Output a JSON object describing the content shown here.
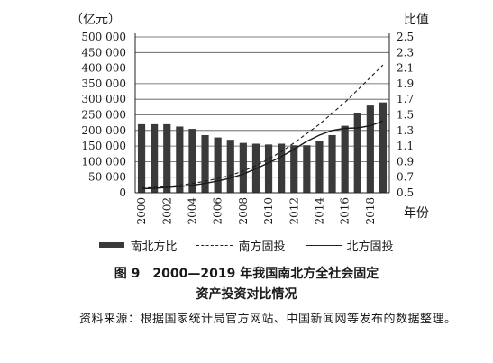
{
  "chart_data": {
    "type": "bar",
    "x": [
      "2000",
      "2001",
      "2002",
      "2003",
      "2004",
      "2005",
      "2006",
      "2007",
      "2008",
      "2009",
      "2010",
      "2011",
      "2012",
      "2013",
      "2014",
      "2015",
      "2016",
      "2017",
      "2018",
      "2019"
    ],
    "x_tick_labels": [
      "2000",
      "2002",
      "2004",
      "2006",
      "2008",
      "2010",
      "2012",
      "2014",
      "2016",
      "2018"
    ],
    "xlabel": "年份",
    "ylabel_left": "（亿元）",
    "ylabel_right": "比值",
    "yticks_left": [
      "0",
      "50 000",
      "100 000",
      "150 000",
      "200 000",
      "250 000",
      "300 000",
      "350 000",
      "400 000",
      "450 000",
      "500 000"
    ],
    "yticks_right": [
      "0.5",
      "0.7",
      "0.9",
      "1.1",
      "1.3",
      "1.5",
      "1.7",
      "1.9",
      "2.1",
      "2.3",
      "2.5"
    ],
    "ylim_left": [
      0,
      500000
    ],
    "ylim_right": [
      0.5,
      2.5
    ],
    "grid": true,
    "legend_position": "bottom",
    "series": [
      {
        "name": "南北方比",
        "type": "bar",
        "axis": "right",
        "values": [
          1.38,
          1.38,
          1.38,
          1.35,
          1.32,
          1.24,
          1.21,
          1.18,
          1.14,
          1.13,
          1.12,
          1.13,
          1.11,
          1.11,
          1.16,
          1.24,
          1.36,
          1.52,
          1.62,
          1.66
        ]
      },
      {
        "name": "南方固投",
        "type": "line",
        "style": "dashed",
        "axis": "left",
        "values": [
          15000,
          17000,
          20000,
          24000,
          30000,
          37000,
          46000,
          56000,
          70000,
          87000,
          108000,
          132000,
          160000,
          190000,
          220000,
          255000,
          290000,
          330000,
          370000,
          410000
        ]
      },
      {
        "name": "北方固投",
        "type": "line",
        "style": "solid",
        "axis": "left",
        "values": [
          13000,
          14500,
          17000,
          20000,
          24000,
          30000,
          38000,
          47000,
          60000,
          77000,
          96000,
          116000,
          140000,
          165000,
          185000,
          200000,
          207000,
          208000,
          215000,
          230000
        ]
      }
    ]
  },
  "legend": {
    "bar": "南北方比",
    "south": "南方固投",
    "north": "北方固投"
  },
  "caption": {
    "line1": "图 9　2000—2019 年我国南北方全社会固定",
    "line2": "资产投资对比情况"
  },
  "source": "资料来源：根据国家统计局官方网站、中国新闻网等发布的数据整理。"
}
